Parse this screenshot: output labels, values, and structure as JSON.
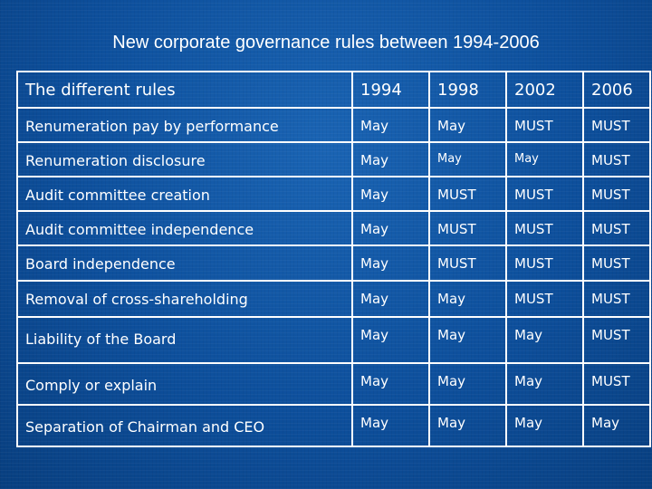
{
  "title": "New corporate governance rules between 1994-2006",
  "table": {
    "headers": [
      "The different rules",
      "1994",
      "1998",
      "2002",
      "2006"
    ],
    "rows": [
      {
        "rule": "Renumeration pay by performance",
        "values": [
          "May",
          "May",
          "MUST",
          "MUST"
        ]
      },
      {
        "rule": "Renumeration disclosure",
        "values": [
          "May",
          "May",
          "May",
          "MUST"
        ]
      },
      {
        "rule": "Audit committee creation",
        "values": [
          "May",
          "MUST",
          "MUST",
          "MUST"
        ]
      },
      {
        "rule": "Audit committee independence",
        "values": [
          "May",
          "MUST",
          "MUST",
          "MUST"
        ]
      },
      {
        "rule": "Board independence",
        "values": [
          "May",
          "MUST",
          "MUST",
          "MUST"
        ]
      },
      {
        "rule": "Removal of cross-shareholding",
        "values": [
          "May",
          "May",
          "MUST",
          "MUST"
        ]
      },
      {
        "rule": "Liability of the Board",
        "values": [
          "May",
          "May",
          "May",
          "MUST"
        ]
      },
      {
        "rule": "Comply or explain",
        "values": [
          "May",
          "May",
          "May",
          "MUST"
        ]
      },
      {
        "rule": "Separation of Chairman and CEO",
        "values": [
          "May",
          "May",
          "May",
          "May"
        ]
      }
    ]
  }
}
